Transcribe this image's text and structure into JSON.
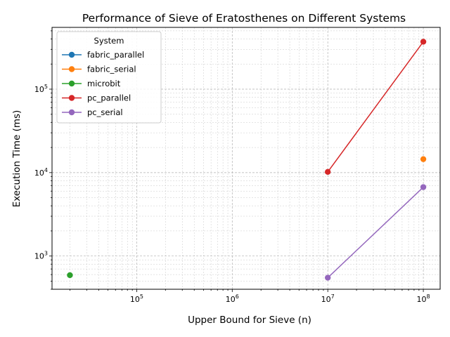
{
  "chart_data": {
    "type": "line",
    "title": "Performance of Sieve of Eratosthenes on Different Systems",
    "xlabel": "Upper Bound for Sieve (n)",
    "ylabel": "Execution Time (ms)",
    "xscale": "log",
    "yscale": "log",
    "xlim": [
      13000,
      150000000
    ],
    "ylim": [
      400,
      550000
    ],
    "xticks": [
      100000,
      1000000,
      10000000,
      100000000
    ],
    "xtick_labels": [
      {
        "base": "10",
        "exp": "5"
      },
      {
        "base": "10",
        "exp": "6"
      },
      {
        "base": "10",
        "exp": "7"
      },
      {
        "base": "10",
        "exp": "8"
      }
    ],
    "yticks": [
      1000,
      10000,
      100000
    ],
    "ytick_labels": [
      {
        "base": "10",
        "exp": "3"
      },
      {
        "base": "10",
        "exp": "4"
      },
      {
        "base": "10",
        "exp": "5"
      }
    ],
    "grid": true,
    "legend": {
      "title": "System",
      "position": "top-left"
    },
    "series": [
      {
        "name": "fabric_parallel",
        "color": "#1f77b4",
        "x": [],
        "y": []
      },
      {
        "name": "fabric_serial",
        "color": "#ff7f0e",
        "x": [
          100000000
        ],
        "y": [
          14500
        ]
      },
      {
        "name": "microbit",
        "color": "#2ca02c",
        "x": [
          20000
        ],
        "y": [
          590
        ]
      },
      {
        "name": "pc_parallel",
        "color": "#d62728",
        "x": [
          10000000,
          100000000
        ],
        "y": [
          10200,
          370000
        ]
      },
      {
        "name": "pc_serial",
        "color": "#9467bd",
        "x": [
          10000000,
          100000000
        ],
        "y": [
          550,
          6700
        ]
      }
    ]
  }
}
